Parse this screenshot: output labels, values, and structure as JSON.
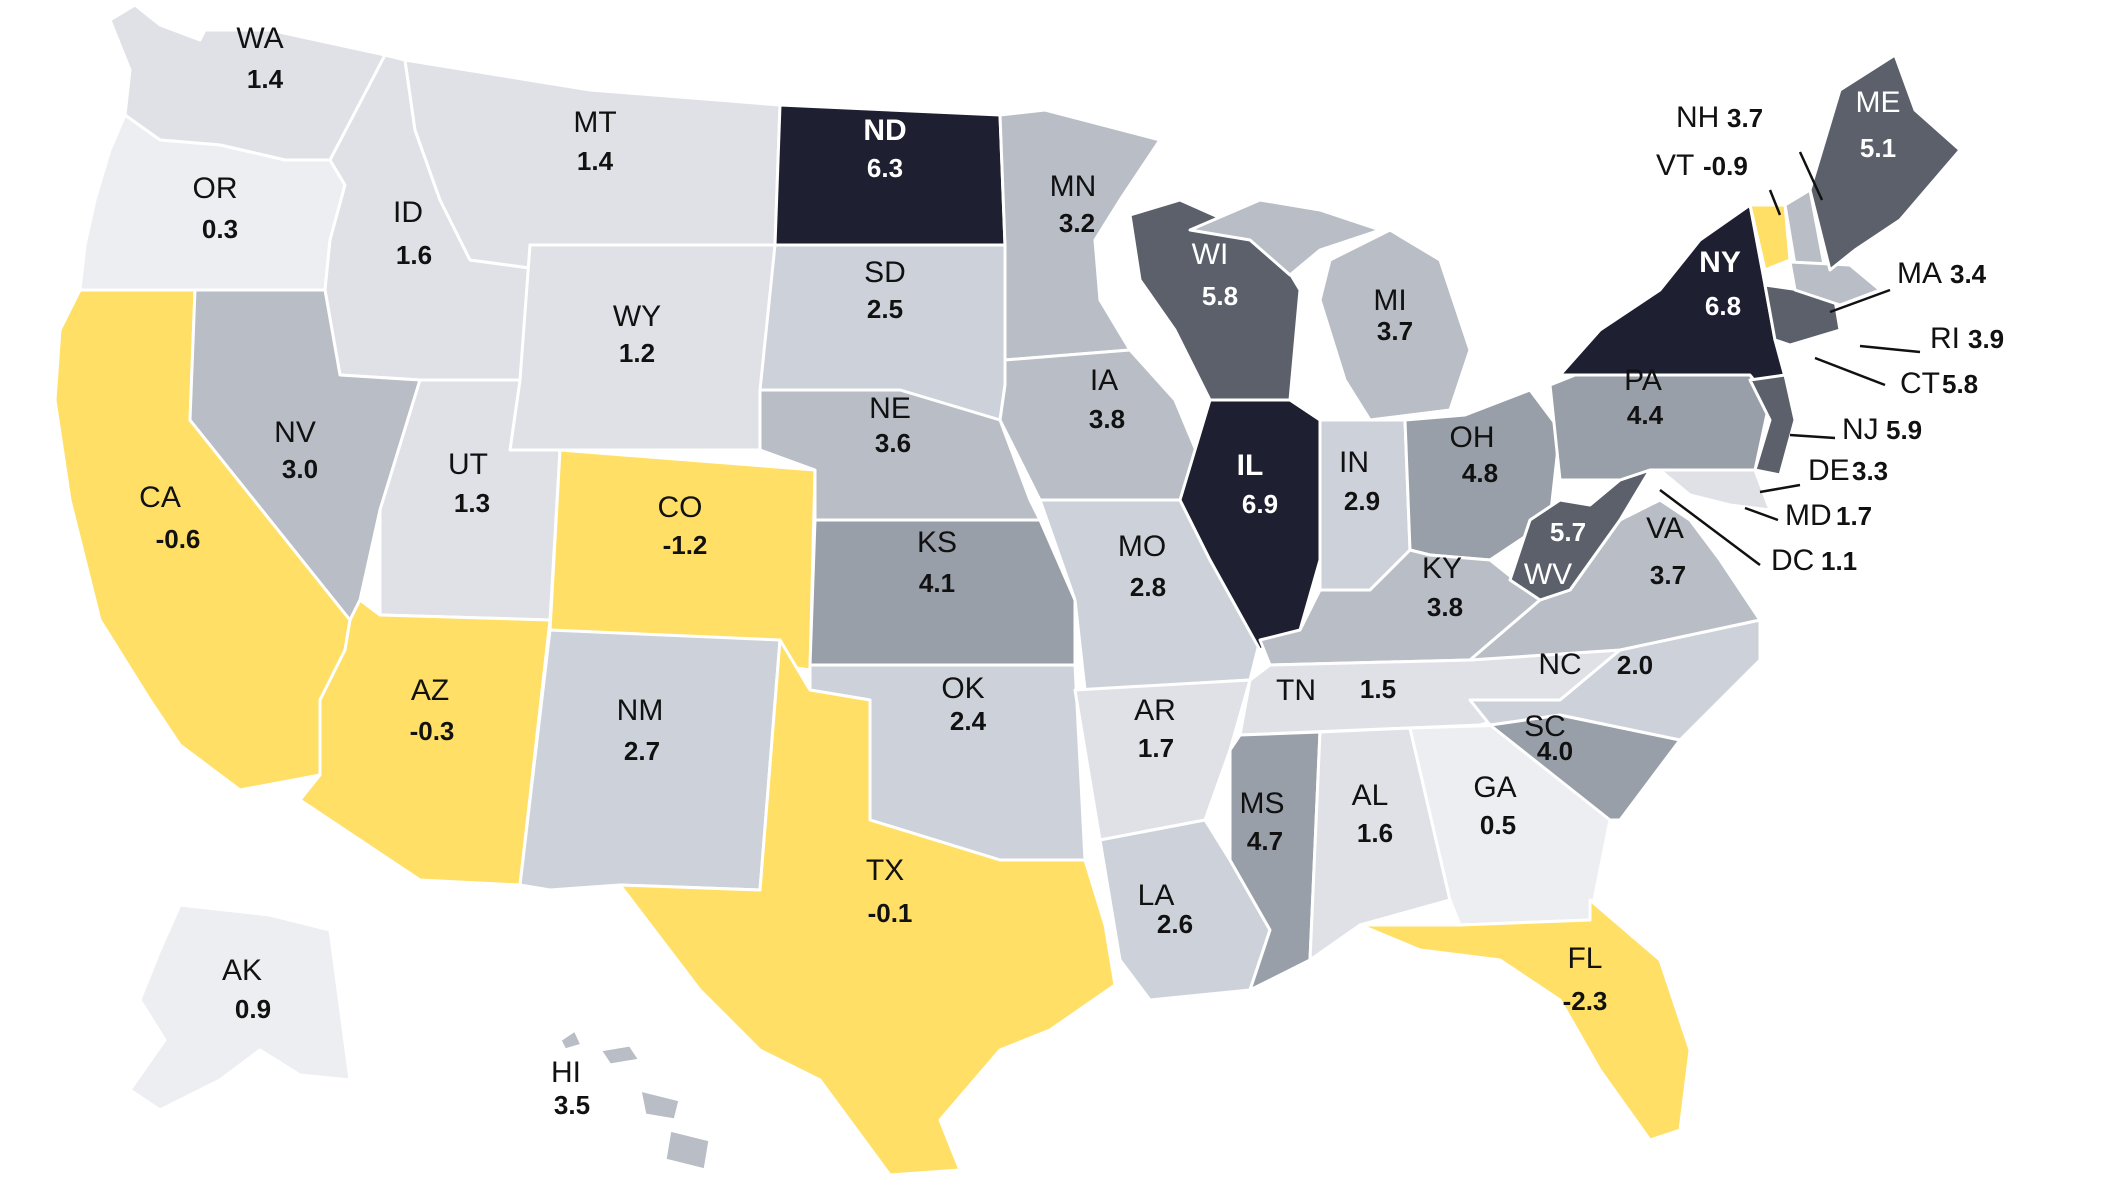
{
  "color_scale": {
    "negative": "#FFDF66",
    "very_light": "#EDEEF1",
    "light": "#DFE1E6",
    "light_mid": "#CDD2DA",
    "mid": "#B8BDC6",
    "mid_dark": "#999FA8",
    "dark": "#5B606B",
    "darkest": "#1E1F30"
  },
  "states": [
    {
      "abbr": "WA",
      "value": "1.4"
    },
    {
      "abbr": "OR",
      "value": "0.3"
    },
    {
      "abbr": "CA",
      "value": "-0.6"
    },
    {
      "abbr": "ID",
      "value": "1.6"
    },
    {
      "abbr": "NV",
      "value": "3.0"
    },
    {
      "abbr": "MT",
      "value": "1.4"
    },
    {
      "abbr": "WY",
      "value": "1.2"
    },
    {
      "abbr": "UT",
      "value": "1.3"
    },
    {
      "abbr": "AZ",
      "value": "-0.3"
    },
    {
      "abbr": "CO",
      "value": "-1.2"
    },
    {
      "abbr": "NM",
      "value": "2.7"
    },
    {
      "abbr": "ND",
      "value": "6.3"
    },
    {
      "abbr": "SD",
      "value": "2.5"
    },
    {
      "abbr": "NE",
      "value": "3.6"
    },
    {
      "abbr": "KS",
      "value": "4.1"
    },
    {
      "abbr": "OK",
      "value": "2.4"
    },
    {
      "abbr": "TX",
      "value": "-0.1"
    },
    {
      "abbr": "MN",
      "value": "3.2"
    },
    {
      "abbr": "IA",
      "value": "3.8"
    },
    {
      "abbr": "MO",
      "value": "2.8"
    },
    {
      "abbr": "AR",
      "value": "1.7"
    },
    {
      "abbr": "LA",
      "value": "2.6"
    },
    {
      "abbr": "WI",
      "value": "5.8"
    },
    {
      "abbr": "IL",
      "value": "6.9"
    },
    {
      "abbr": "MI",
      "value": "3.7"
    },
    {
      "abbr": "IN",
      "value": "2.9"
    },
    {
      "abbr": "OH",
      "value": "4.8"
    },
    {
      "abbr": "KY",
      "value": "3.8"
    },
    {
      "abbr": "TN",
      "value": "1.5"
    },
    {
      "abbr": "MS",
      "value": "4.7"
    },
    {
      "abbr": "AL",
      "value": "1.6"
    },
    {
      "abbr": "GA",
      "value": "0.5"
    },
    {
      "abbr": "FL",
      "value": "-2.3"
    },
    {
      "abbr": "SC",
      "value": "4.0"
    },
    {
      "abbr": "NC",
      "value": "2.0"
    },
    {
      "abbr": "VA",
      "value": "3.7"
    },
    {
      "abbr": "WV",
      "value": "5.7"
    },
    {
      "abbr": "PA",
      "value": "4.4"
    },
    {
      "abbr": "NY",
      "value": "6.8"
    },
    {
      "abbr": "ME",
      "value": "5.1"
    },
    {
      "abbr": "AK",
      "value": "0.9"
    },
    {
      "abbr": "HI",
      "value": "3.5"
    }
  ],
  "callouts": [
    {
      "abbr": "NH",
      "value": "3.7"
    },
    {
      "abbr": "VT",
      "value": "-0.9"
    },
    {
      "abbr": "MA",
      "value": "3.4"
    },
    {
      "abbr": "RI",
      "value": "3.9"
    },
    {
      "abbr": "CT",
      "value": "5.8"
    },
    {
      "abbr": "NJ",
      "value": "5.9"
    },
    {
      "abbr": "DE",
      "value": "3.3"
    },
    {
      "abbr": "MD",
      "value": "1.7"
    },
    {
      "abbr": "DC",
      "value": "1.1"
    }
  ]
}
